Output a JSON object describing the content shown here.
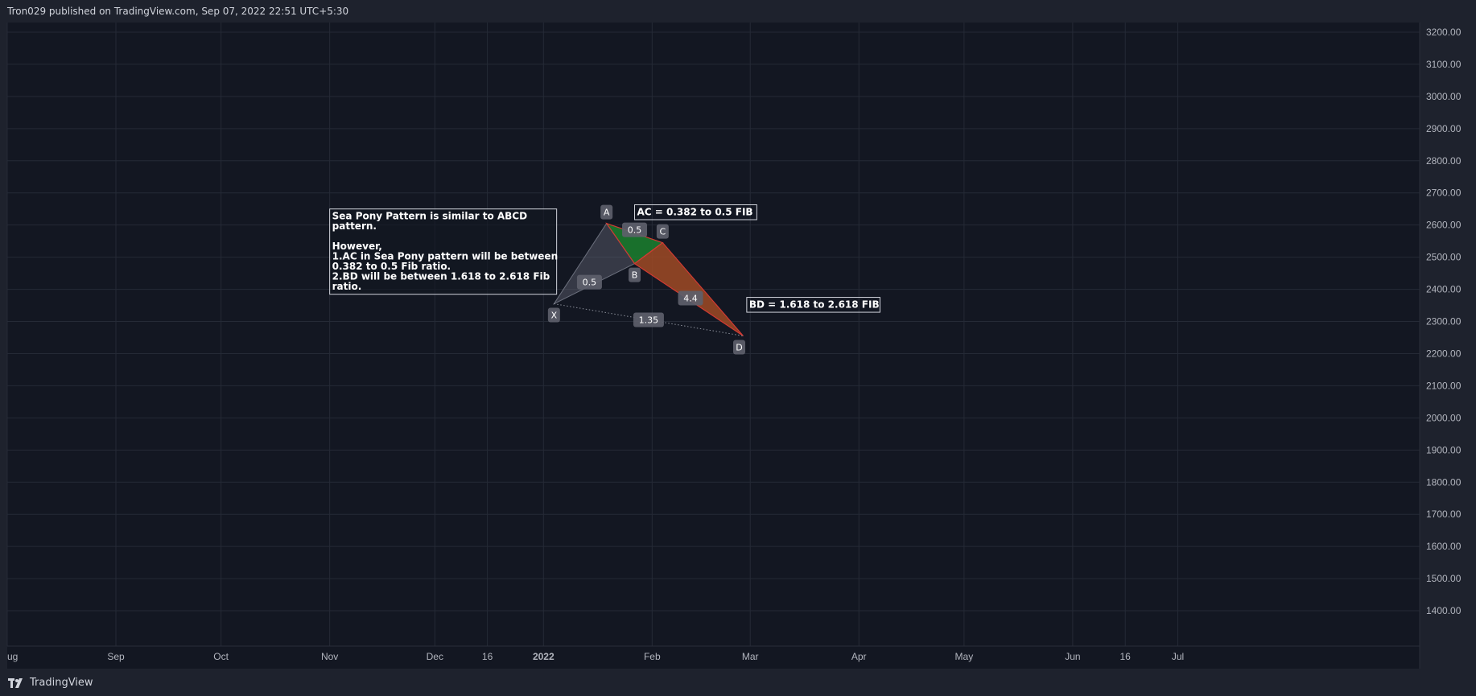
{
  "header": {
    "published_text": "Tron029 published on TradingView.com, Sep 07, 2022 22:51 UTC+5:30"
  },
  "footer": {
    "brand": "TradingView"
  },
  "colors": {
    "background": "#131722",
    "frame": "#1e222d",
    "grid": "#252a36",
    "axis_text": "#b2b5be",
    "pattern_gray": "#6b6f7c",
    "pattern_green": "#1b7a2e",
    "pattern_orange": "#a04a25",
    "pattern_line": "#d23a33",
    "label_bg": "#5d606b"
  },
  "chart_data": {
    "type": "line",
    "title": "",
    "xlabel": "",
    "ylabel": "",
    "y_ticks": [
      3200,
      3100,
      3000,
      2900,
      2800,
      2700,
      2600,
      2500,
      2400,
      2300,
      2200,
      2100,
      2000,
      1900,
      1800,
      1700,
      1600,
      1500,
      1400
    ],
    "y_tick_labels": [
      "3200.00",
      "3100.00",
      "3000.00",
      "2900.00",
      "2800.00",
      "2700.00",
      "2600.00",
      "2500.00",
      "2400.00",
      "2300.00",
      "2200.00",
      "2100.00",
      "2000.00",
      "1900.00",
      "1800.00",
      "1700.00",
      "1600.00",
      "1500.00",
      "1400.00"
    ],
    "ylim": [
      1290,
      3230
    ],
    "x_ticks": [
      {
        "label": "ug",
        "date": "2021-08-01"
      },
      {
        "label": "Sep",
        "date": "2021-09-01"
      },
      {
        "label": "Oct",
        "date": "2021-10-01"
      },
      {
        "label": "Nov",
        "date": "2021-11-01"
      },
      {
        "label": "Dec",
        "date": "2021-12-01"
      },
      {
        "label": "16",
        "date": "2021-12-16"
      },
      {
        "label": "2022",
        "date": "2022-01-01",
        "bold": true
      },
      {
        "label": "Feb",
        "date": "2022-02-01"
      },
      {
        "label": "Mar",
        "date": "2022-03-01"
      },
      {
        "label": "Apr",
        "date": "2022-04-01"
      },
      {
        "label": "May",
        "date": "2022-05-01"
      },
      {
        "label": "Jun",
        "date": "2022-06-01"
      },
      {
        "label": "16",
        "date": "2022-06-16"
      },
      {
        "label": "Jul",
        "date": "2022-07-01"
      }
    ],
    "grid": true,
    "pattern": {
      "points": [
        {
          "label": "X",
          "date": "2022-01-04",
          "price": 2355
        },
        {
          "label": "A",
          "date": "2022-01-19",
          "price": 2605
        },
        {
          "label": "B",
          "date": "2022-01-27",
          "price": 2480
        },
        {
          "label": "C",
          "date": "2022-02-04",
          "price": 2545
        },
        {
          "label": "D",
          "date": "2022-02-27",
          "price": 2255
        }
      ],
      "ratios": [
        {
          "label": "0.5",
          "between": [
            "X",
            "B"
          ]
        },
        {
          "label": "0.5",
          "between": [
            "A",
            "C"
          ]
        },
        {
          "label": "4.4",
          "between": [
            "B",
            "D"
          ]
        },
        {
          "label": "1.35",
          "between": [
            "X",
            "D"
          ]
        }
      ]
    },
    "annotations": [
      {
        "id": "note",
        "date": "2021-11-01",
        "price": 2650,
        "lines": [
          "Sea Pony Pattern is similar to ABCD",
          "pattern.",
          "",
          "However,",
          "1.AC in Sea Pony pattern will be between",
          "0.382 to 0.5 Fib ratio.",
          "2.BD will be between 1.618 to 2.618 Fib",
          "ratio."
        ]
      },
      {
        "id": "ac",
        "date": "2022-01-27",
        "price": 2663,
        "lines": [
          "AC = 0.382 to 0.5 FIB"
        ]
      },
      {
        "id": "bd",
        "date": "2022-02-28",
        "price": 2375,
        "lines": [
          "BD = 1.618 to 2.618 FIB"
        ]
      }
    ]
  }
}
